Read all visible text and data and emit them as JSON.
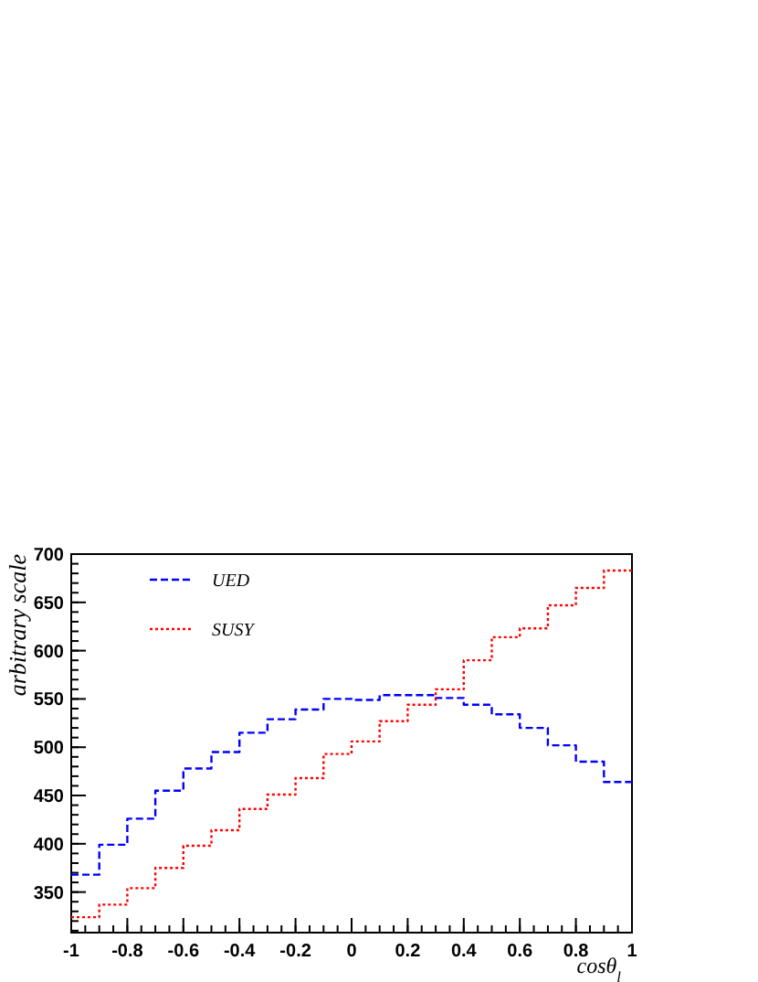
{
  "chart_data": {
    "type": "step",
    "xlabel": "cosθ$_{l}$",
    "ylabel": "arbitrary scale",
    "x": [
      -1,
      -0.9,
      -0.8,
      -0.7,
      -0.6,
      -0.5,
      -0.4,
      -0.3,
      -0.2,
      -0.1,
      0,
      0.1,
      0.2,
      0.3,
      0.4,
      0.5,
      0.6,
      0.7,
      0.8,
      0.9,
      1
    ],
    "series": [
      {
        "name": "UED",
        "color": "#0000ff",
        "line_style": "dashed",
        "values": [
          368,
          399,
          426,
          455,
          478,
          495,
          515,
          529,
          539,
          550,
          549,
          554,
          554,
          551,
          544,
          534,
          520,
          502,
          485,
          464,
          464
        ]
      },
      {
        "name": "SUSY",
        "color": "#ff0000",
        "line_style": "dotted",
        "values": [
          324,
          337,
          354,
          375,
          398,
          414,
          436,
          451,
          468,
          493,
          506,
          527,
          544,
          560,
          590,
          614,
          623,
          647,
          665,
          683,
          683
        ]
      }
    ],
    "xlim": [
      -1,
      1
    ],
    "xticks": [
      -1,
      -0.8,
      -0.6,
      -0.4,
      -0.2,
      0,
      0.2,
      0.4,
      0.6,
      0.8,
      1
    ],
    "ylim": [
      308,
      700
    ],
    "yticks": [
      350,
      400,
      450,
      500,
      550,
      600,
      650,
      700
    ],
    "legend": "top left"
  }
}
